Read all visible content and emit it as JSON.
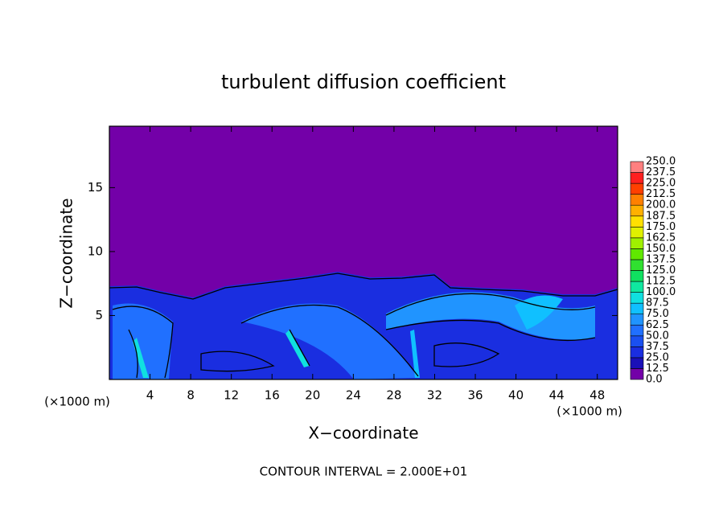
{
  "chart_data": {
    "type": "contour",
    "title": "turbulent diffusion coefficient",
    "xlabel": "X−coordinate",
    "ylabel": "Z−coordinate",
    "x_unit": "(×1000 m)",
    "note": "CONTOUR INTERVAL = 2.000E+01",
    "xlim": [
      0,
      50
    ],
    "xticks": [
      4,
      8,
      12,
      16,
      20,
      24,
      28,
      32,
      36,
      40,
      44,
      48
    ],
    "ylim": [
      0,
      19.8
    ],
    "yticks": [
      5,
      10,
      15
    ],
    "colorbar": {
      "levels": [
        {
          "value": 0,
          "label": "0.0"
        },
        {
          "value": 12.5,
          "label": "12.5"
        },
        {
          "value": 25,
          "label": "25.0"
        },
        {
          "value": 37.5,
          "label": "37.5"
        },
        {
          "value": 50,
          "label": "50.0"
        },
        {
          "value": 62.5,
          "label": "62.5"
        },
        {
          "value": 75,
          "label": "75.0"
        },
        {
          "value": 87.5,
          "label": "87.5"
        },
        {
          "value": 100,
          "label": "100.0"
        },
        {
          "value": 112.5,
          "label": "112.5"
        },
        {
          "value": 125,
          "label": "125.0"
        },
        {
          "value": 137.5,
          "label": "137.5"
        },
        {
          "value": 150,
          "label": "150.0"
        },
        {
          "value": 162.5,
          "label": "162.5"
        },
        {
          "value": 175,
          "label": "175.0"
        },
        {
          "value": 187.5,
          "label": "187.5"
        },
        {
          "value": 200,
          "label": "200.0"
        },
        {
          "value": 212.5,
          "label": "212.5"
        },
        {
          "value": 225,
          "label": "225.0"
        },
        {
          "value": 237.5,
          "label": "237.5"
        },
        {
          "value": 250,
          "label": "250.0"
        }
      ],
      "colors": [
        "#7300a8",
        "#1a10b8",
        "#1a2ee0",
        "#1a50f0",
        "#2070ff",
        "#2094ff",
        "#10c0ff",
        "#10e0e0",
        "#10e8a0",
        "#10e060",
        "#30e030",
        "#60e800",
        "#a0f000",
        "#e0f000",
        "#ffe000",
        "#ffb000",
        "#ff8000",
        "#ff4000",
        "#ff2020",
        "#ff8080"
      ]
    }
  }
}
